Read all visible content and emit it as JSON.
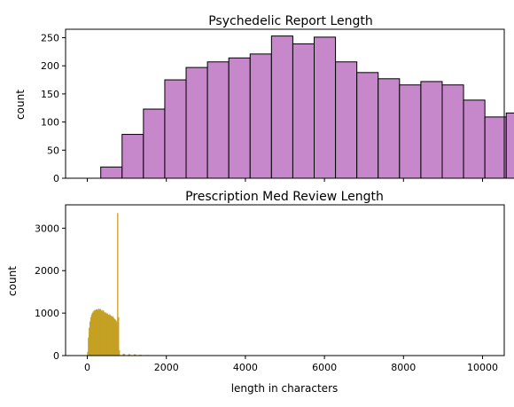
{
  "chart_data": [
    {
      "type": "bar",
      "title": "Psychedelic Report Length",
      "xlabel": "",
      "ylabel": "count",
      "xlim": [
        -550,
        10550
      ],
      "ylim": [
        0,
        265
      ],
      "yticks": [
        0,
        50,
        100,
        150,
        200,
        250
      ],
      "show_x_ticklabels": false,
      "bar_color": "#c788cb",
      "edge_color": "#000000",
      "bin_start": 340,
      "bin_width": 540,
      "values": [
        20,
        78,
        123,
        175,
        197,
        207,
        214,
        221,
        253,
        239,
        251,
        207,
        188,
        177,
        166,
        172,
        166,
        139,
        109,
        116
      ]
    },
    {
      "type": "bar",
      "title": "Prescription Med Review Length",
      "xlabel": "length in characters",
      "ylabel": "count",
      "xlim": [
        -550,
        10550
      ],
      "ylim": [
        0,
        3550
      ],
      "xticks": [
        0,
        2000,
        4000,
        6000,
        8000,
        10000
      ],
      "yticks": [
        0,
        1000,
        2000,
        3000
      ],
      "bar_color": "#d4a017",
      "edge_color": "#b8a02a",
      "bin_start": 0,
      "bin_width": 20,
      "values": [
        80,
        420,
        650,
        800,
        900,
        960,
        1000,
        1030,
        1050,
        1070,
        1060,
        1080,
        1090,
        1060,
        1100,
        1080,
        1090,
        1050,
        1070,
        1040,
        1060,
        1020,
        1000,
        1010,
        980,
        990,
        960,
        950,
        970,
        940,
        930,
        900,
        920,
        880,
        860,
        840,
        820,
        780,
        3350,
        900,
        120
      ],
      "tail": [
        [
          900,
          40
        ],
        [
          1040,
          30
        ],
        [
          1180,
          25
        ],
        [
          1320,
          15
        ],
        [
          1500,
          10
        ],
        [
          1720,
          8
        ],
        [
          2300,
          4
        ],
        [
          4700,
          3
        ]
      ]
    }
  ]
}
